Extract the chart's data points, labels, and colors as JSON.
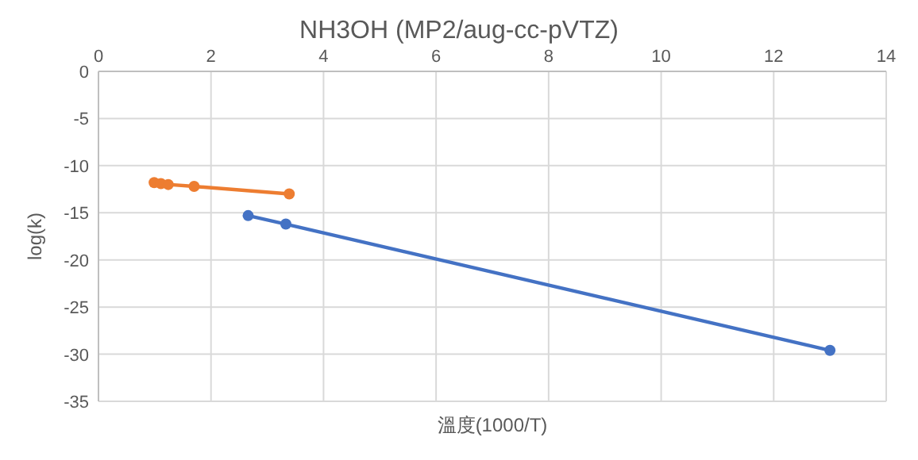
{
  "chart_data": {
    "type": "line",
    "title": "NH3OH (MP2/aug-cc-pVTZ)",
    "xlabel": "溫度(1000/T)",
    "ylabel": "log(k)",
    "xlim": [
      0,
      14
    ],
    "xticks": [
      0,
      2,
      4,
      6,
      8,
      10,
      12,
      14
    ],
    "ylim": [
      -35,
      0
    ],
    "yticks": [
      0,
      -5,
      -10,
      -15,
      -20,
      -25,
      -30,
      -35
    ],
    "grid": true,
    "marker": "circle",
    "line_style": "solid",
    "series": [
      {
        "color": "#ed7d31",
        "x": [
          0.99,
          1.11,
          1.24,
          1.7,
          3.39
        ],
        "values": [
          -11.8,
          -11.9,
          -12.0,
          -12.2,
          -13.0
        ]
      },
      {
        "color": "#4472c4",
        "x": [
          2.66,
          3.33,
          13.0
        ],
        "values": [
          -15.3,
          -16.2,
          -29.6
        ]
      }
    ]
  }
}
